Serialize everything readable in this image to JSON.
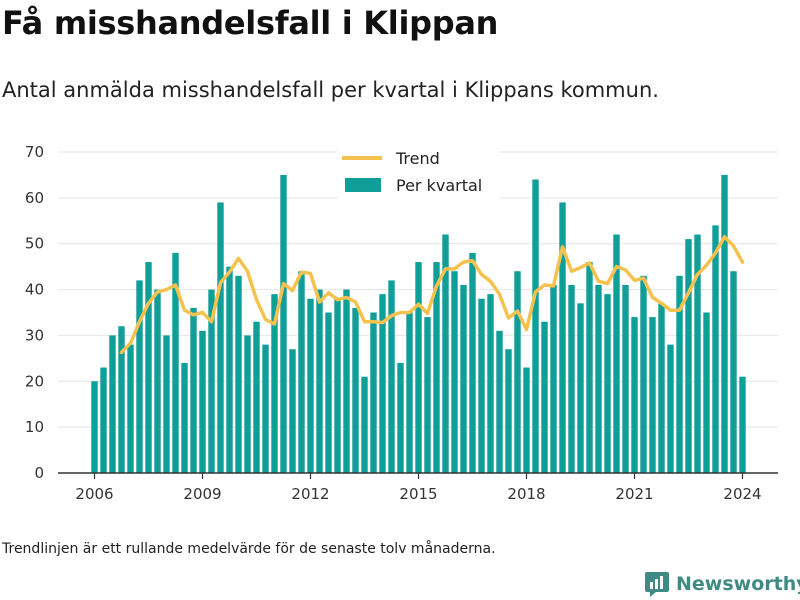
{
  "header": {
    "title": "Få misshandelsfall i Klippan",
    "subtitle": "Antal anmälda misshandelsfall per kvartal i Klippans kommun."
  },
  "footer": {
    "note": "Trendlinjen är ett rullande medelvärde för de senaste tolv månaderna.",
    "brand": "Newsworthy"
  },
  "colors": {
    "bars": "#0f9e98",
    "trend": "#f5c24f",
    "brand": "#3f8a82"
  },
  "chart_data": {
    "type": "bar",
    "title": "",
    "xlabel": "",
    "ylabel": "",
    "ylim": [
      0,
      70
    ],
    "yticks": [
      0,
      10,
      20,
      30,
      40,
      50,
      60,
      70
    ],
    "xticks": [
      "2006",
      "2009",
      "2012",
      "2015",
      "2018",
      "2021",
      "2024"
    ],
    "legend_position": "top-center",
    "grid": true,
    "categories": [
      "2006 Q1",
      "2006 Q2",
      "2006 Q3",
      "2006 Q4",
      "2007 Q1",
      "2007 Q2",
      "2007 Q3",
      "2007 Q4",
      "2008 Q1",
      "2008 Q2",
      "2008 Q3",
      "2008 Q4",
      "2009 Q1",
      "2009 Q2",
      "2009 Q3",
      "2009 Q4",
      "2010 Q1",
      "2010 Q2",
      "2010 Q3",
      "2010 Q4",
      "2011 Q1",
      "2011 Q2",
      "2011 Q3",
      "2011 Q4",
      "2012 Q1",
      "2012 Q2",
      "2012 Q3",
      "2012 Q4",
      "2013 Q1",
      "2013 Q2",
      "2013 Q3",
      "2013 Q4",
      "2014 Q1",
      "2014 Q2",
      "2014 Q3",
      "2014 Q4",
      "2015 Q1",
      "2015 Q2",
      "2015 Q3",
      "2015 Q4",
      "2016 Q1",
      "2016 Q2",
      "2016 Q3",
      "2016 Q4",
      "2017 Q1",
      "2017 Q2",
      "2017 Q3",
      "2017 Q4",
      "2018 Q1",
      "2018 Q2",
      "2018 Q3",
      "2018 Q4",
      "2019 Q1",
      "2019 Q2",
      "2019 Q3",
      "2019 Q4",
      "2020 Q1",
      "2020 Q2",
      "2020 Q3",
      "2020 Q4",
      "2021 Q1",
      "2021 Q2",
      "2021 Q3",
      "2021 Q4",
      "2022 Q1",
      "2022 Q2",
      "2022 Q3",
      "2022 Q4",
      "2023 Q1",
      "2023 Q2",
      "2023 Q3",
      "2023 Q4",
      "2024 Q1"
    ],
    "series": [
      {
        "name": "Per kvartal",
        "type": "bar",
        "values": [
          20,
          23,
          30,
          32,
          28,
          42,
          46,
          40,
          30,
          48,
          24,
          36,
          31,
          40,
          59,
          45,
          43,
          30,
          33,
          28,
          39,
          65,
          27,
          44,
          38,
          40,
          35,
          38,
          40,
          36,
          21,
          35,
          39,
          42,
          24,
          35,
          46,
          34,
          46,
          52,
          44,
          41,
          48,
          38,
          39,
          31,
          27,
          44,
          23,
          64,
          33,
          41,
          59,
          41,
          37,
          46,
          41,
          39,
          52,
          41,
          34,
          43,
          34,
          37,
          28,
          43,
          51,
          52,
          35,
          54,
          65,
          44,
          21
        ]
      },
      {
        "name": "Trend",
        "type": "line",
        "values": [
          null,
          null,
          null,
          26.3,
          28.3,
          33,
          37,
          39.5,
          40,
          41,
          35.5,
          34.5,
          35,
          33,
          41.5,
          43.8,
          46.8,
          44,
          37.8,
          33.5,
          32.5,
          41.3,
          39.8,
          43.8,
          43.5,
          37.3,
          39.3,
          37.8,
          38.3,
          37.3,
          33,
          33,
          32.8,
          34.3,
          35,
          35,
          36.8,
          34.8,
          40.8,
          44.5,
          44.5,
          46,
          46.3,
          43.3,
          41.8,
          39,
          33.8,
          35.3,
          31.3,
          39.5,
          41,
          40.8,
          49.3,
          44,
          44.8,
          45.8,
          41.8,
          41.3,
          45,
          44.3,
          42,
          42.5,
          38.3,
          37,
          35.5,
          35.5,
          39.3,
          43.3,
          45.3,
          48,
          51.5,
          49.5,
          46
        ]
      }
    ]
  }
}
